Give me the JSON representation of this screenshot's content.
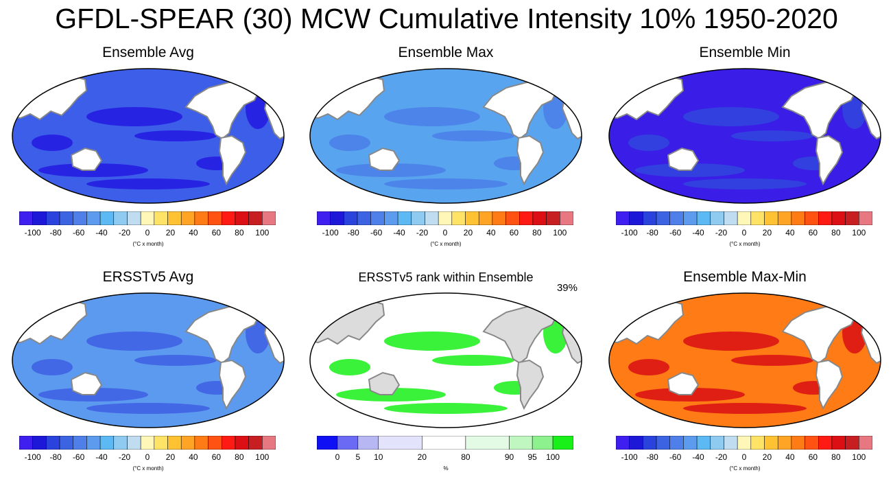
{
  "title": "GFDL-SPEAR (30) MCW Cumulative Intensity 10% 1950-2020",
  "colors": {
    "diverging": [
      "#3f1ef0",
      "#1d17d8",
      "#2a43dd",
      "#3b63e2",
      "#4f7fe9",
      "#5d9bee",
      "#5cb9f4",
      "#8fcbf1",
      "#c0dcf0",
      "#fff7b8",
      "#ffe366",
      "#ffc233",
      "#ffa424",
      "#ff7b16",
      "#ff5213",
      "#ff1a14",
      "#db0f14",
      "#c71e22",
      "#e77781"
    ],
    "rank": [
      "#1010f4",
      "#6a6af4",
      "#b7b7f4",
      "#e3e3fb",
      "#ffffff",
      "#e3fbe5",
      "#c0f7c0",
      "#8df28d",
      "#19f019"
    ],
    "land": "#ffffff",
    "land_gray": "#dcdcdc",
    "coast": "#888888"
  },
  "colorbar_standard": {
    "ticks": [
      "-100",
      "-80",
      "-60",
      "-40",
      "-20",
      "0",
      "20",
      "40",
      "60",
      "80",
      "100"
    ],
    "unit": "(°C x month)"
  },
  "colorbar_rank": {
    "ticks": [
      "0",
      "5",
      "10",
      "20",
      "80",
      "90",
      "95",
      "100"
    ],
    "unit": "%"
  },
  "panels": [
    {
      "id": "avg",
      "title": "Ensemble Avg",
      "ocean": "#3d5ee8",
      "patch": "#2319e0"
    },
    {
      "id": "max",
      "title": "Ensemble Max",
      "ocean": "#58a4ef",
      "patch": "#4a7fe9"
    },
    {
      "id": "min",
      "title": "Ensemble Min",
      "ocean": "#3a1de6",
      "patch": "#3046dc"
    },
    {
      "id": "ersst",
      "title": "ERSSTv5 Avg",
      "ocean": "#5b9aee",
      "patch": "#3f5fe4"
    },
    {
      "id": "rank",
      "title": "ERSSTv5 rank within Ensemble",
      "percent": "39%",
      "ocean": "#ffffff",
      "patch": "#19f019"
    },
    {
      "id": "maxmin",
      "title": "Ensemble Max-Min",
      "ocean": "#ff7b16",
      "patch": "#db0f14"
    }
  ]
}
